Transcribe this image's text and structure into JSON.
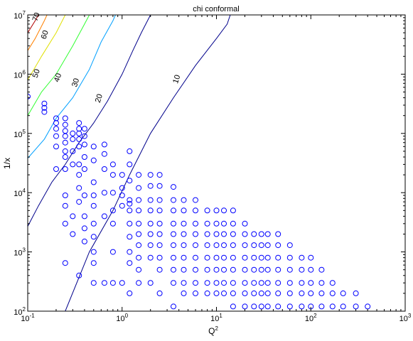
{
  "chart_data": {
    "type": "scatter",
    "title": "chi conformal",
    "xlabel": "Q",
    "xlabel_sup": "2",
    "ylabel": "1/x",
    "x_scale": "log",
    "y_scale": "log",
    "xlim": [
      0.1,
      1000
    ],
    "ylim": [
      100,
      10000000
    ],
    "grid": false,
    "x_ticks": [
      {
        "base": "10",
        "exp": "-1"
      },
      {
        "base": "10",
        "exp": "0"
      },
      {
        "base": "10",
        "exp": "1"
      },
      {
        "base": "10",
        "exp": "2"
      },
      {
        "base": "10",
        "exp": "3"
      }
    ],
    "y_ticks": [
      {
        "base": "10",
        "exp": "2"
      },
      {
        "base": "10",
        "exp": "3"
      },
      {
        "base": "10",
        "exp": "4"
      },
      {
        "base": "10",
        "exp": "5"
      },
      {
        "base": "10",
        "exp": "6"
      },
      {
        "base": "10",
        "exp": "7"
      }
    ],
    "contours": [
      {
        "label": "10",
        "color": "#00008b",
        "points": [
          [
            0.25,
            100
          ],
          [
            0.45,
            1000
          ],
          [
            0.8,
            5000
          ],
          [
            1.2,
            20000
          ],
          [
            2.0,
            100000
          ],
          [
            3.5,
            400000
          ],
          [
            6.0,
            1400000
          ],
          [
            10.0,
            4000000
          ],
          [
            13.0,
            7000000
          ],
          [
            14.0,
            10000000
          ]
        ],
        "label_at": [
          4.0,
          800000
        ]
      },
      {
        "label": "20",
        "color": "#00008b",
        "points": [
          [
            0.1,
            2700
          ],
          [
            0.13,
            6000
          ],
          [
            0.18,
            15000
          ],
          [
            0.25,
            30000
          ],
          [
            0.35,
            70000
          ],
          [
            0.5,
            150000
          ],
          [
            0.7,
            350000
          ],
          [
            1.0,
            1000000
          ],
          [
            1.3,
            2500000
          ],
          [
            1.6,
            5000000
          ],
          [
            2.0,
            10000000
          ]
        ],
        "label_at": [
          0.6,
          380000
        ]
      },
      {
        "label": "30",
        "color": "#00a0ff",
        "points": [
          [
            0.1,
            38000
          ],
          [
            0.15,
            80000
          ],
          [
            0.2,
            180000
          ],
          [
            0.3,
            400000
          ],
          [
            0.45,
            1200000
          ],
          [
            0.6,
            3500000
          ],
          [
            0.8,
            8000000
          ],
          [
            0.85,
            10000000
          ]
        ],
        "label_at": [
          0.34,
          700000
        ]
      },
      {
        "label": "40",
        "color": "#30ff30",
        "points": [
          [
            0.1,
            200000
          ],
          [
            0.14,
            500000
          ],
          [
            0.2,
            1000000
          ],
          [
            0.3,
            3000000
          ],
          [
            0.4,
            7000000
          ],
          [
            0.45,
            10000000
          ]
        ],
        "label_at": [
          0.22,
          850000
        ]
      },
      {
        "label": "50",
        "color": "#e0e000",
        "points": [
          [
            0.1,
            800000
          ],
          [
            0.14,
            2000000
          ],
          [
            0.2,
            5000000
          ],
          [
            0.25,
            10000000
          ]
        ],
        "label_at": [
          0.13,
          1000000
        ]
      },
      {
        "label": "60",
        "color": "#ff8000",
        "points": [
          [
            0.1,
            2500000
          ],
          [
            0.12,
            4000000
          ],
          [
            0.15,
            8000000
          ],
          [
            0.16,
            10000000
          ]
        ],
        "label_at": [
          0.16,
          4500000
        ]
      },
      {
        "label": "70",
        "color": "#b00000",
        "points": [
          [
            0.1,
            5000000
          ],
          [
            0.12,
            8000000
          ],
          [
            0.13,
            10000000
          ]
        ],
        "label_at": [
          0.13,
          9000000
        ]
      }
    ],
    "scatter_color": "#0000ff",
    "scatter": [
      [
        0.1,
        420000
      ],
      [
        0.15,
        320000
      ],
      [
        0.15,
        270000
      ],
      [
        0.15,
        230000
      ],
      [
        0.2,
        180000
      ],
      [
        0.2,
        150000
      ],
      [
        0.2,
        120000
      ],
      [
        0.2,
        90000
      ],
      [
        0.2,
        60000
      ],
      [
        0.2,
        25000
      ],
      [
        0.25,
        180000
      ],
      [
        0.25,
        140000
      ],
      [
        0.25,
        110000
      ],
      [
        0.25,
        90000
      ],
      [
        0.25,
        70000
      ],
      [
        0.25,
        50000
      ],
      [
        0.25,
        40000
      ],
      [
        0.25,
        25000
      ],
      [
        0.25,
        9000
      ],
      [
        0.25,
        6000
      ],
      [
        0.25,
        3000
      ],
      [
        0.25,
        650
      ],
      [
        0.3,
        100000
      ],
      [
        0.3,
        80000
      ],
      [
        0.3,
        50000
      ],
      [
        0.3,
        30000
      ],
      [
        0.3,
        4000
      ],
      [
        0.3,
        2000
      ],
      [
        0.35,
        150000
      ],
      [
        0.35,
        120000
      ],
      [
        0.35,
        100000
      ],
      [
        0.35,
        80000
      ],
      [
        0.35,
        60000
      ],
      [
        0.35,
        30000
      ],
      [
        0.35,
        20000
      ],
      [
        0.35,
        12000
      ],
      [
        0.35,
        7000
      ],
      [
        0.35,
        400
      ],
      [
        0.4,
        120000
      ],
      [
        0.4,
        90000
      ],
      [
        0.4,
        65000
      ],
      [
        0.4,
        40000
      ],
      [
        0.4,
        25000
      ],
      [
        0.4,
        9000
      ],
      [
        0.4,
        4000
      ],
      [
        0.4,
        2500
      ],
      [
        0.4,
        1500
      ],
      [
        0.5,
        60000
      ],
      [
        0.5,
        35000
      ],
      [
        0.5,
        15000
      ],
      [
        0.5,
        9000
      ],
      [
        0.5,
        6000
      ],
      [
        0.5,
        3000
      ],
      [
        0.5,
        1800
      ],
      [
        0.5,
        1000
      ],
      [
        0.5,
        650
      ],
      [
        0.5,
        300
      ],
      [
        0.65,
        65000
      ],
      [
        0.65,
        45000
      ],
      [
        0.65,
        25000
      ],
      [
        0.65,
        10000
      ],
      [
        0.65,
        4000
      ],
      [
        0.65,
        300
      ],
      [
        0.8,
        30000
      ],
      [
        0.8,
        20000
      ],
      [
        0.8,
        10000
      ],
      [
        0.8,
        5000
      ],
      [
        0.8,
        3000
      ],
      [
        0.8,
        1000
      ],
      [
        0.8,
        300
      ],
      [
        1.0,
        20000
      ],
      [
        1.0,
        12000
      ],
      [
        1.0,
        9000
      ],
      [
        1.0,
        6000
      ],
      [
        1.0,
        300
      ],
      [
        1.2,
        50000
      ],
      [
        1.2,
        30000
      ],
      [
        1.2,
        16000
      ],
      [
        1.2,
        7500
      ],
      [
        1.2,
        6500
      ],
      [
        1.2,
        5000
      ],
      [
        1.2,
        3000
      ],
      [
        1.2,
        1800
      ],
      [
        1.2,
        1000
      ],
      [
        1.2,
        650
      ],
      [
        1.2,
        200
      ],
      [
        1.5,
        20000
      ],
      [
        1.5,
        12000
      ],
      [
        1.5,
        7500
      ],
      [
        1.5,
        5000
      ],
      [
        1.5,
        3000
      ],
      [
        1.5,
        2000
      ],
      [
        1.5,
        1300
      ],
      [
        1.5,
        800
      ],
      [
        1.5,
        500
      ],
      [
        1.5,
        300
      ],
      [
        2.0,
        20000
      ],
      [
        2.0,
        13000
      ],
      [
        2.0,
        7500
      ],
      [
        2.0,
        5000
      ],
      [
        2.0,
        3000
      ],
      [
        2.0,
        2000
      ],
      [
        2.0,
        1300
      ],
      [
        2.0,
        800
      ],
      [
        2.0,
        300
      ],
      [
        2.5,
        20000
      ],
      [
        2.5,
        13000
      ],
      [
        2.5,
        7500
      ],
      [
        2.5,
        5000
      ],
      [
        2.5,
        3000
      ],
      [
        2.5,
        2000
      ],
      [
        2.5,
        1300
      ],
      [
        2.5,
        800
      ],
      [
        2.5,
        500
      ],
      [
        2.5,
        200
      ],
      [
        3.5,
        12500
      ],
      [
        3.5,
        7500
      ],
      [
        3.5,
        5000
      ],
      [
        3.5,
        3000
      ],
      [
        3.5,
        2000
      ],
      [
        3.5,
        1300
      ],
      [
        3.5,
        800
      ],
      [
        3.5,
        500
      ],
      [
        3.5,
        300
      ],
      [
        3.5,
        120
      ],
      [
        4.5,
        7500
      ],
      [
        4.5,
        5000
      ],
      [
        4.5,
        3000
      ],
      [
        4.5,
        2000
      ],
      [
        4.5,
        1300
      ],
      [
        4.5,
        800
      ],
      [
        4.5,
        500
      ],
      [
        4.5,
        300
      ],
      [
        4.5,
        200
      ],
      [
        6.0,
        7500
      ],
      [
        6.0,
        5000
      ],
      [
        6.0,
        3000
      ],
      [
        6.0,
        2000
      ],
      [
        6.0,
        1300
      ],
      [
        6.0,
        800
      ],
      [
        6.0,
        500
      ],
      [
        6.0,
        300
      ],
      [
        6.0,
        200
      ],
      [
        8.0,
        5000
      ],
      [
        8.0,
        3000
      ],
      [
        8.0,
        2000
      ],
      [
        8.0,
        1300
      ],
      [
        8.0,
        800
      ],
      [
        8.0,
        500
      ],
      [
        8.0,
        300
      ],
      [
        8.0,
        200
      ],
      [
        10.0,
        5000
      ],
      [
        10.0,
        3000
      ],
      [
        10.0,
        2000
      ],
      [
        10.0,
        1300
      ],
      [
        10.0,
        800
      ],
      [
        10.0,
        500
      ],
      [
        10.0,
        300
      ],
      [
        10.0,
        200
      ],
      [
        12.0,
        5000
      ],
      [
        12.0,
        3000
      ],
      [
        12.0,
        2000
      ],
      [
        12.0,
        1300
      ],
      [
        12.0,
        800
      ],
      [
        12.0,
        500
      ],
      [
        12.0,
        300
      ],
      [
        12.0,
        200
      ],
      [
        15.0,
        5000
      ],
      [
        15.0,
        3000
      ],
      [
        15.0,
        2000
      ],
      [
        15.0,
        1300
      ],
      [
        15.0,
        800
      ],
      [
        15.0,
        500
      ],
      [
        15.0,
        300
      ],
      [
        15.0,
        200
      ],
      [
        15.0,
        120
      ],
      [
        20.0,
        3000
      ],
      [
        20.0,
        2000
      ],
      [
        20.0,
        1300
      ],
      [
        20.0,
        800
      ],
      [
        20.0,
        500
      ],
      [
        20.0,
        300
      ],
      [
        20.0,
        200
      ],
      [
        20.0,
        120
      ],
      [
        25.0,
        2000
      ],
      [
        25.0,
        1300
      ],
      [
        25.0,
        800
      ],
      [
        25.0,
        500
      ],
      [
        25.0,
        300
      ],
      [
        25.0,
        200
      ],
      [
        25.0,
        120
      ],
      [
        30.0,
        2000
      ],
      [
        30.0,
        1300
      ],
      [
        30.0,
        800
      ],
      [
        30.0,
        500
      ],
      [
        30.0,
        300
      ],
      [
        30.0,
        200
      ],
      [
        30.0,
        120
      ],
      [
        35.0,
        2000
      ],
      [
        35.0,
        1300
      ],
      [
        35.0,
        800
      ],
      [
        35.0,
        500
      ],
      [
        35.0,
        300
      ],
      [
        35.0,
        200
      ],
      [
        35.0,
        120
      ],
      [
        45.0,
        2000
      ],
      [
        45.0,
        1300
      ],
      [
        45.0,
        800
      ],
      [
        45.0,
        500
      ],
      [
        45.0,
        300
      ],
      [
        45.0,
        200
      ],
      [
        45.0,
        120
      ],
      [
        60.0,
        1300
      ],
      [
        60.0,
        800
      ],
      [
        60.0,
        500
      ],
      [
        60.0,
        300
      ],
      [
        60.0,
        200
      ],
      [
        60.0,
        120
      ],
      [
        80.0,
        800
      ],
      [
        80.0,
        500
      ],
      [
        80.0,
        300
      ],
      [
        80.0,
        200
      ],
      [
        80.0,
        120
      ],
      [
        100.0,
        800
      ],
      [
        100.0,
        500
      ],
      [
        100.0,
        300
      ],
      [
        100.0,
        200
      ],
      [
        100.0,
        120
      ],
      [
        130.0,
        500
      ],
      [
        130.0,
        300
      ],
      [
        130.0,
        200
      ],
      [
        130.0,
        120
      ],
      [
        170.0,
        300
      ],
      [
        170.0,
        200
      ],
      [
        170.0,
        120
      ],
      [
        220.0,
        200
      ],
      [
        220.0,
        120
      ],
      [
        300.0,
        200
      ],
      [
        300.0,
        120
      ],
      [
        400.0,
        120
      ]
    ]
  }
}
